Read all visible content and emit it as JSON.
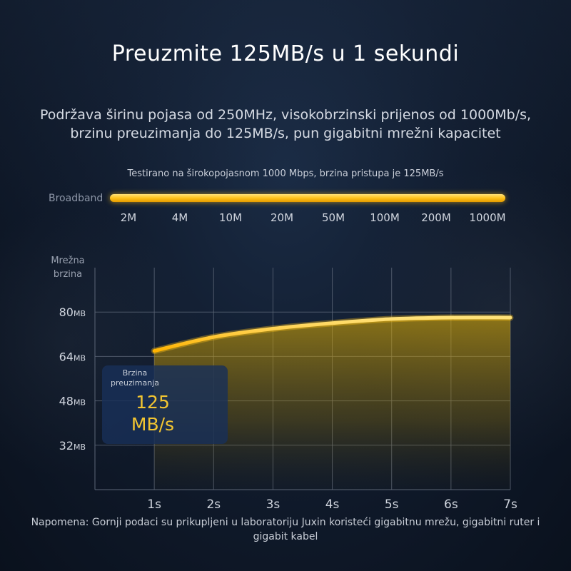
{
  "title": "Preuzmite 125MB/s u 1 sekundi",
  "subtitle_lines": [
    "Podržava širinu pojasa od 250MHz, visokobrzinski prijenos od 1000Mb/s,",
    "brzinu preuzimanja do 125MB/s, pun gigabitni mrežni kapacitet"
  ],
  "test_note": "Testirano na širokopojasnom 1000 Mbps, brzina pristupa je 125MB/s",
  "broadband": {
    "label": "Broadband",
    "ticks": [
      "2M",
      "4M",
      "10M",
      "20M",
      "50M",
      "100M",
      "200M",
      "1000M"
    ]
  },
  "info_box": {
    "label": "Brzina preuzimanja",
    "value": "125 MB/s"
  },
  "footnote": "Napomena: Gornji podaci su prikupljeni u laboratoriju Juxin koristeći gigabitnu mrežu, gigabitni ruter i gigabit kabel",
  "colors": {
    "accent": "#f5c518",
    "grid": "#5c6677",
    "axis_text": "#d0d5de"
  },
  "chart_data": {
    "type": "area",
    "ylabel": "Mrežna brzina",
    "x_ticks": [
      "1s",
      "2s",
      "3s",
      "4s",
      "5s",
      "6s",
      "7s"
    ],
    "y_ticks": [
      {
        "value": 32,
        "label": "32MB"
      },
      {
        "value": 48,
        "label": "48MB"
      },
      {
        "value": 64,
        "label": "64MB"
      },
      {
        "value": 80,
        "label": "80MB"
      }
    ],
    "xlim": [
      0,
      7
    ],
    "ylim": [
      16,
      96
    ],
    "series": [
      {
        "x": [
          1,
          2,
          3,
          4,
          5,
          6,
          7
        ],
        "values": [
          66,
          71,
          74,
          76,
          77.5,
          78,
          78
        ]
      }
    ],
    "grid": true
  }
}
